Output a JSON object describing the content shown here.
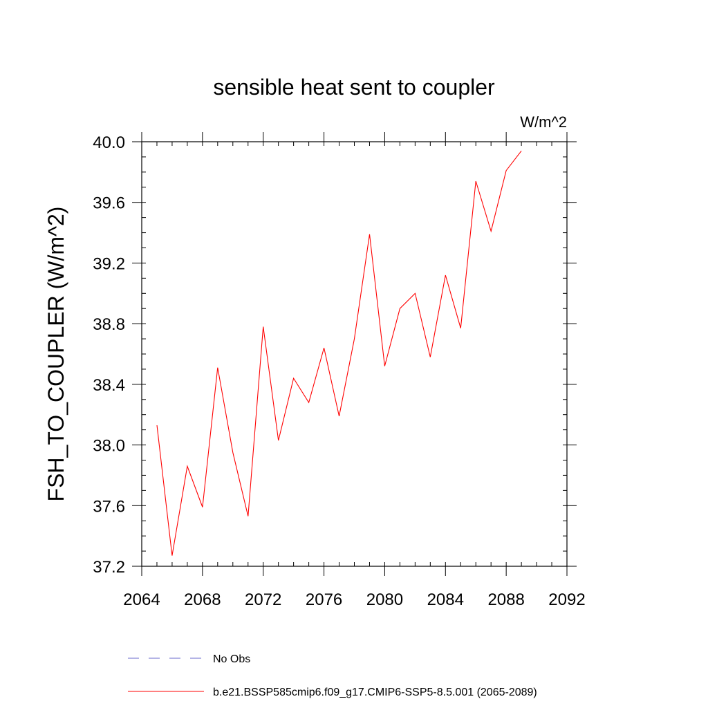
{
  "chart_data": {
    "type": "line",
    "title": "sensible heat sent to coupler",
    "units": "W/m^2",
    "ylabel": "FSH_TO_COUPLER  (W/m^2)",
    "xlabel": "",
    "xlim": [
      2064,
      2092
    ],
    "ylim": [
      37.2,
      40.0
    ],
    "x_ticks": [
      "2064",
      "2068",
      "2072",
      "2076",
      "2080",
      "2084",
      "2088",
      "2092"
    ],
    "y_ticks": [
      "37.2",
      "37.6",
      "38.0",
      "38.4",
      "38.8",
      "39.2",
      "39.6",
      "40.0"
    ],
    "grid": false,
    "legend_position": "bottom",
    "series": [
      {
        "name": "No Obs",
        "color": "#6a6acd",
        "dash": "dashed",
        "x": [],
        "values": []
      },
      {
        "name": "b.e21.BSSP585cmip6.f09_g17.CMIP6-SSP5-8.5.001 (2065-2089)",
        "color": "#ff0000",
        "dash": "solid",
        "x": [
          2065,
          2066,
          2067,
          2068,
          2069,
          2070,
          2071,
          2072,
          2073,
          2074,
          2075,
          2076,
          2077,
          2078,
          2079,
          2080,
          2081,
          2082,
          2083,
          2084,
          2085,
          2086,
          2087,
          2088,
          2089
        ],
        "values": [
          38.13,
          37.27,
          37.86,
          37.59,
          38.51,
          37.95,
          37.53,
          38.78,
          38.03,
          38.44,
          38.28,
          38.64,
          38.19,
          38.7,
          39.39,
          38.52,
          38.9,
          39.0,
          38.58,
          39.12,
          38.77,
          39.74,
          39.41,
          39.81,
          39.94
        ]
      }
    ]
  }
}
